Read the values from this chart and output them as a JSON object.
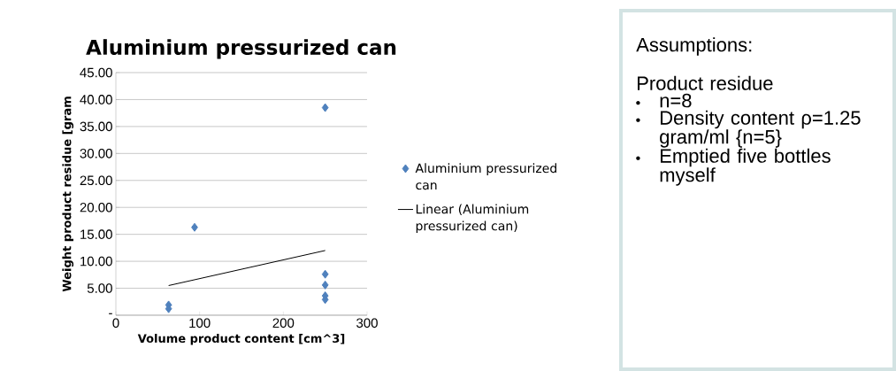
{
  "chart_data": [
    {
      "type": "scatter",
      "title": "Aluminium pressurized can",
      "xlabel": "Volume product content [cm^3]",
      "ylabel": "Weight product residue [gram",
      "xlim": [
        0,
        300
      ],
      "xticks": [
        0,
        100,
        200,
        300
      ],
      "ylim": [
        0,
        45
      ],
      "yticks": [
        {
          "value": 0,
          "label": "-"
        },
        {
          "value": 5,
          "label": "5.00"
        },
        {
          "value": 10,
          "label": "10.00"
        },
        {
          "value": 15,
          "label": "15.00"
        },
        {
          "value": 20,
          "label": "20.00"
        },
        {
          "value": 25,
          "label": "25.00"
        },
        {
          "value": 30,
          "label": "30.00"
        },
        {
          "value": 35,
          "label": "35.00"
        },
        {
          "value": 40,
          "label": "40.00"
        },
        {
          "value": 45,
          "label": "45.00"
        }
      ],
      "grid": "y",
      "legend": "right",
      "series": [
        {
          "name": "Aluminium pressurized can",
          "color": "#4f81bd",
          "marker": "diamond",
          "x": [
            63,
            63,
            94,
            250,
            250,
            250,
            250,
            250
          ],
          "values": [
            1.9,
            1.2,
            16.3,
            38.5,
            7.6,
            5.6,
            3.6,
            2.9
          ]
        },
        {
          "name": "Linear (Aluminium pressurized can)",
          "type": "line",
          "color": "#000000",
          "marker": "none",
          "x": [
            63,
            250
          ],
          "values": [
            5.5,
            12.0
          ]
        }
      ]
    },
    {
      "type": "other",
      "title": "Assumptions:",
      "subtitle": "Product residue",
      "annotations": [
        "n=8",
        "Density content ρ=1.25 gram/ml {n=5}",
        "Emptied five bottles myself"
      ]
    }
  ]
}
